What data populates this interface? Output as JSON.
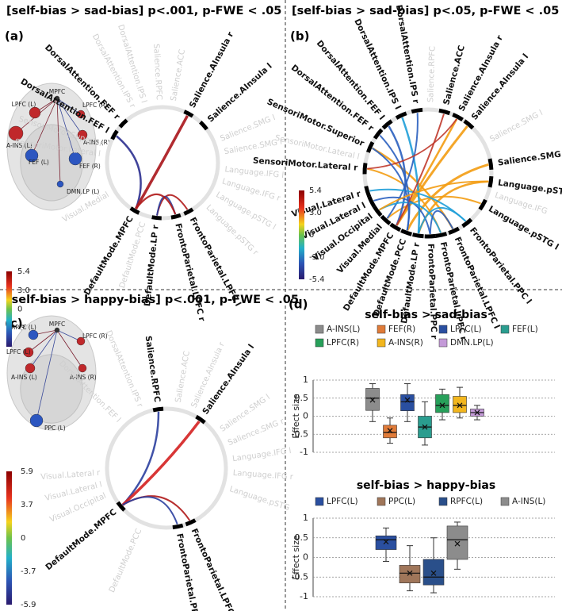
{
  "panels": [
    {
      "label": "(a)",
      "title": "[self-bias > sad-bias] p<.001, p-FWE < .05",
      "labels": [
        "DorsalAttention.FEF r",
        "DorsalAttention.FEF l",
        "Salience.AInsula r",
        "Salience.AInsula l",
        "DefaultMode.MPFC",
        "DefaultMode.LP r",
        "FrontoParietal.LPFC r",
        "FrontoParietal.LPFC l"
      ],
      "faint_labels": [
        "DorsalAttention.IPS r",
        "DorsalAttention.IPS l",
        "Salience.RPFC",
        "Salience.ACC",
        "Salience.SMG l",
        "Salience.SMG r",
        "Language.IFG l",
        "Language.IFG r",
        "Language.pSTG l",
        "Language.pSTG r",
        "SensoriMotor.Superior",
        "SensoriMotor.Lateral l",
        "Visual.Medial",
        "DefaultMode.PCC"
      ],
      "nodes": [
        "MPFC",
        "LPFC (L)",
        "LPFC (R)",
        "A-INS (L)",
        "A-INS (R)",
        "FEF (L)",
        "FEF (R)",
        "DMN.LP (L)"
      ],
      "colorbar_ticks": [
        "5.4",
        "3.0",
        "0",
        "-3.0",
        "-5.4"
      ]
    },
    {
      "label": "(b)",
      "title": "[self-bias > sad-bias] p<.05, p-FWE < .05",
      "labels": [
        "DorsalAttention.IPS r",
        "DorsalAttention.IPS l",
        "DorsalAttention.FEF l",
        "DorsalAttention.FEF r",
        "SensoriMotor.Superior",
        "SensoriMotor.Lateral r",
        "Visual.Lateral r",
        "Visual.Lateral l",
        "Visual.Occipital",
        "Visual.Medial",
        "DefaultMode.MPFC",
        "DefaultMode.PCC",
        "DefaultMode.LP r",
        "FrontoParietal.PPC r",
        "FrontoParietal.LPFC r",
        "FrontoParietal.LPFC l",
        "FrontoParietal.PPC l",
        "Language.pSTG l",
        "Language.pST",
        "Salience.SMG r",
        "Salience.AInsula l",
        "Salience.AInsula r",
        "Salience.ACC"
      ],
      "faint_labels": [
        "Salience.RPFC",
        "Salience.SMG l",
        "Language.IFG",
        "SensoriMotor.Lateral l"
      ],
      "nodes": [],
      "colorbar_ticks": [
        "5.4",
        "3.0",
        "0",
        "-3.0",
        "-5.4"
      ]
    },
    {
      "label": "(c)",
      "title": "[self-bias > happy-bias] p<.001, p-FWE < .05",
      "labels": [
        "Salience.RPFC",
        "Salience.AInsula l",
        "DefaultMode.MPFC",
        "FrontoParietal.LPFC l",
        "FrontoParietal.PPC l"
      ],
      "faint_labels": [
        "Salience.ACC",
        "Salience.AInsula r",
        "Salience.SMG l",
        "Salience.SMG r",
        "Language.IFG l",
        "Language.IFG r",
        "Language.pSTG",
        "DorsalAttention.IPS r",
        "DorsalAttention.FEF l",
        "Visual.Lateral r",
        "Visual.Lateral l",
        "Visual.Occipital",
        "DefaultMode.PCC"
      ],
      "nodes": [
        "MPFC",
        "RPFC (L)",
        "LPFC (R)",
        "LPFC (L)",
        "A-INS (L)",
        "A-INS (R)",
        "PPC (L)"
      ],
      "colorbar_ticks": [
        "5.9",
        "3.7",
        "0",
        "-3.7",
        "-5.9"
      ]
    }
  ],
  "panel_d": {
    "label": "(d)"
  },
  "chart_data": [
    {
      "type": "box",
      "title": "self-bias > sad-bias",
      "ylabel": "Effect size",
      "ylim": [
        -1,
        1
      ],
      "yticks": [
        1,
        0.5,
        0,
        -0.5,
        -1
      ],
      "grid": true,
      "series": [
        {
          "name": "A-INS(L)",
          "color": "#8c8c8c",
          "whislo": -0.15,
          "q1": 0.16,
          "median": 0.5,
          "q3": 0.77,
          "whishi": 0.9,
          "mean": 0.45
        },
        {
          "name": "FEF(R)",
          "color": "#e07b39",
          "whislo": -0.75,
          "q1": -0.6,
          "median": -0.45,
          "q3": -0.25,
          "whishi": -0.05,
          "mean": -0.4
        },
        {
          "name": "LPFC(L)",
          "color": "#2a4fa0",
          "whislo": -0.15,
          "q1": 0.15,
          "median": 0.4,
          "q3": 0.6,
          "whishi": 0.9,
          "mean": 0.45
        },
        {
          "name": "FEF(L)",
          "color": "#2a9d8f",
          "whislo": -0.8,
          "q1": -0.6,
          "median": -0.3,
          "q3": 0,
          "whishi": 0.4,
          "mean": -0.3
        },
        {
          "name": "LPFC(R)",
          "color": "#27a05a",
          "whislo": -0.1,
          "q1": 0.1,
          "median": 0.3,
          "q3": 0.6,
          "whishi": 0.75,
          "mean": 0.3
        },
        {
          "name": "A-INS(R)",
          "color": "#f2b61e",
          "whislo": -0.05,
          "q1": 0.1,
          "median": 0.3,
          "q3": 0.55,
          "whishi": 0.8,
          "mean": 0.3
        },
        {
          "name": "DMN.LP(L)",
          "color": "#c49ad8",
          "whislo": -0.1,
          "q1": 0,
          "median": 0.1,
          "q3": 0.2,
          "whishi": 0.3,
          "mean": 0.1
        }
      ]
    },
    {
      "type": "box",
      "title": "self-bias > happy-bias",
      "ylabel": "Effect size",
      "ylim": [
        -1,
        1
      ],
      "yticks": [
        1,
        0.5,
        0,
        -0.5,
        -1
      ],
      "grid": true,
      "series": [
        {
          "name": "LPFC(L)",
          "color": "#2a4fa0",
          "whislo": -0.1,
          "q1": 0.2,
          "median": 0.45,
          "q3": 0.55,
          "whishi": 0.75,
          "mean": 0.4
        },
        {
          "name": "PPC(L)",
          "color": "#a0765a",
          "whislo": -0.85,
          "q1": -0.65,
          "median": -0.4,
          "q3": -0.2,
          "whishi": 0.3,
          "mean": -0.4
        },
        {
          "name": "RPFC(L)",
          "color": "#2a4f8a",
          "whislo": -0.9,
          "q1": -0.7,
          "median": -0.5,
          "q3": -0.05,
          "whishi": 0.5,
          "mean": -0.4
        },
        {
          "name": "A-INS(L)",
          "color": "#8c8c8c",
          "whislo": -0.3,
          "q1": -0.05,
          "median": 0.45,
          "q3": 0.8,
          "whishi": 0.9,
          "mean": 0.35
        }
      ]
    }
  ]
}
